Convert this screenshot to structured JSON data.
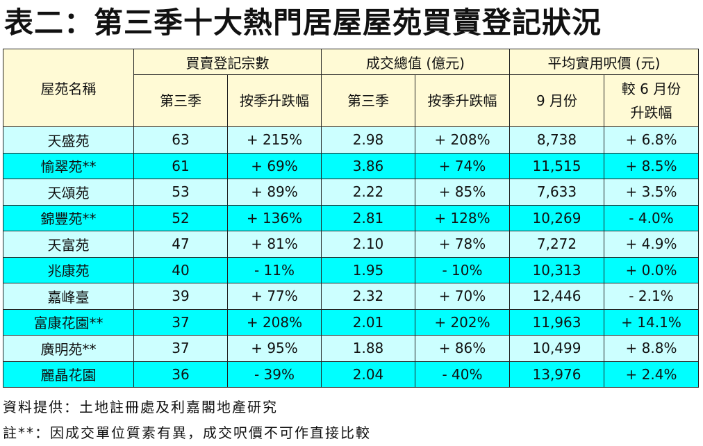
{
  "title": "表二：第三季十大熱門居屋屋苑買賣登記狀況",
  "header": {
    "estate": "屋苑名稱",
    "groups": [
      "買賣登記宗數",
      "成交總值 (億元)",
      "平均實用呎價 (元)"
    ],
    "sub": [
      "第三季",
      "按季升跌幅",
      "第三季",
      "按季升跌幅",
      "9 月份",
      "較 6 月份",
      "升跌幅"
    ]
  },
  "colors": {
    "header": "#FFFAD5",
    "row_light": "#CCFFFF",
    "row_dark": "#00FFFF"
  },
  "rows": [
    [
      "天盛苑",
      "63",
      "+ 215%",
      "2.98",
      "+ 208%",
      "8,738",
      "+ 6.8%"
    ],
    [
      "愉翠苑**",
      "61",
      "+ 69%",
      "3.86",
      "+ 74%",
      "11,515",
      "+ 8.5%"
    ],
    [
      "天頌苑",
      "53",
      "+ 89%",
      "2.22",
      "+ 85%",
      "7,633",
      "+ 3.5%"
    ],
    [
      "錦豐苑**",
      "52",
      "+ 136%",
      "2.81",
      "+ 128%",
      "10,269",
      "- 4.0%"
    ],
    [
      "天富苑",
      "47",
      "+ 81%",
      "2.10",
      "+ 78%",
      "7,272",
      "+ 4.9%"
    ],
    [
      "兆康苑",
      "40",
      "- 11%",
      "1.95",
      "- 10%",
      "10,313",
      "+ 0.0%"
    ],
    [
      "嘉峰臺",
      "39",
      "+ 77%",
      "2.32",
      "+ 70%",
      "12,446",
      "- 2.1%"
    ],
    [
      "富康花園**",
      "37",
      "+ 208%",
      "2.01",
      "+ 202%",
      "11,963",
      "+ 14.1%"
    ],
    [
      "廣明苑**",
      "37",
      "+ 95%",
      "1.88",
      "+ 86%",
      "10,499",
      "+ 8.8%"
    ],
    [
      "麗晶花園",
      "36",
      "- 39%",
      "2.04",
      "- 40%",
      "13,976",
      "+ 2.4%"
    ]
  ],
  "notes": {
    "source": "資料提供：土地註冊處及利嘉閣地產研究",
    "footnote": "註**：因成交單位質素有異，成交呎價不可作直接比較"
  }
}
